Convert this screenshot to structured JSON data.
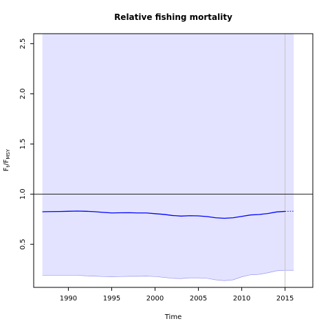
{
  "chart_data": {
    "type": "line",
    "title": "Relative fishing mortality",
    "xlabel": "Time",
    "ylabel": {
      "main": "F",
      "sub1": "t",
      "mid": "/F",
      "sub2": "MSY"
    },
    "xlim": [
      1986,
      2018.2
    ],
    "ylim": [
      0.07,
      2.6
    ],
    "x_ticks": [
      1990,
      1995,
      2000,
      2005,
      2010,
      2015
    ],
    "y_ticks": [
      0.5,
      1.0,
      1.5,
      2.0,
      2.5
    ],
    "x_tick_labels": [
      "1990",
      "1995",
      "2000",
      "2005",
      "2010",
      "2015"
    ],
    "y_tick_labels": [
      "0.5",
      "1.0",
      "1.5",
      "2.0",
      "2.5"
    ],
    "reference_line_y": 1.0,
    "current_year_line_x": 2015,
    "series": [
      {
        "role": "estimate",
        "color": "#0000ff",
        "x": [
          1987,
          1988,
          1989,
          1990,
          1991,
          1992,
          1993,
          1994,
          1995,
          1996,
          1997,
          1998,
          1999,
          2000,
          2001,
          2002,
          2003,
          2004,
          2005,
          2006,
          2007,
          2008,
          2009,
          2010,
          2011,
          2012,
          2013,
          2014,
          2015
        ],
        "y": [
          0.824,
          0.826,
          0.827,
          0.829,
          0.831,
          0.829,
          0.825,
          0.818,
          0.812,
          0.814,
          0.815,
          0.812,
          0.812,
          0.805,
          0.798,
          0.787,
          0.781,
          0.785,
          0.783,
          0.776,
          0.764,
          0.759,
          0.764,
          0.778,
          0.792,
          0.797,
          0.806,
          0.822,
          0.828
        ]
      },
      {
        "role": "forecast",
        "color": "#0000ff",
        "style": "dotted",
        "x": [
          2015,
          2016
        ],
        "y": [
          0.828,
          0.83
        ]
      }
    ],
    "confidence_band": {
      "color": "#e3e3ff",
      "edge_color": "#8888ee",
      "x": [
        1987,
        1988,
        1989,
        1990,
        1991,
        1992,
        1993,
        1994,
        1995,
        1996,
        1997,
        1998,
        1999,
        2000,
        2001,
        2002,
        2003,
        2004,
        2005,
        2006,
        2007,
        2008,
        2009,
        2010,
        2011,
        2012,
        2013,
        2014,
        2015,
        2016
      ],
      "lower": [
        0.19,
        0.19,
        0.19,
        0.19,
        0.19,
        0.185,
        0.182,
        0.178,
        0.175,
        0.178,
        0.18,
        0.18,
        0.182,
        0.178,
        0.17,
        0.16,
        0.158,
        0.165,
        0.165,
        0.16,
        0.145,
        0.137,
        0.145,
        0.175,
        0.195,
        0.2,
        0.215,
        0.235,
        0.24,
        0.24
      ],
      "upper": [
        2.6,
        2.6,
        2.6,
        2.6,
        2.6,
        2.6,
        2.6,
        2.6,
        2.6,
        2.6,
        2.6,
        2.6,
        2.6,
        2.6,
        2.6,
        2.6,
        2.6,
        2.6,
        2.6,
        2.6,
        2.6,
        2.6,
        2.6,
        2.6,
        2.6,
        2.6,
        2.6,
        2.6,
        2.6,
        2.6
      ]
    }
  }
}
